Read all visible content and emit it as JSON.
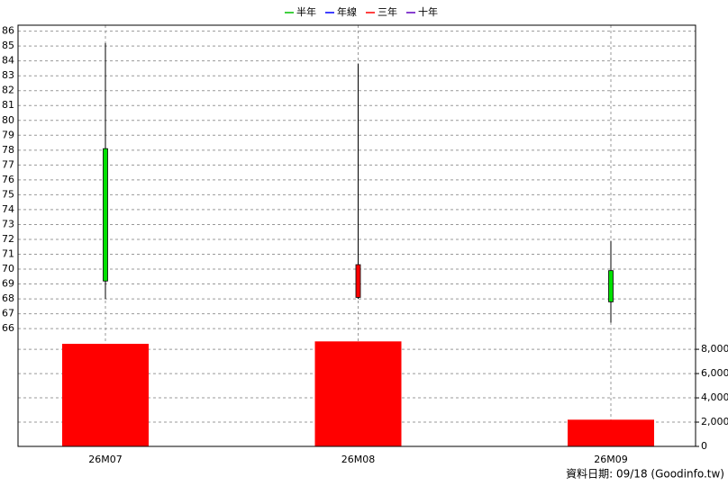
{
  "chart_data": {
    "type": "candlestick",
    "legend": [
      {
        "name": "半年",
        "color": "#00c000"
      },
      {
        "name": "年線",
        "color": "#0000ff"
      },
      {
        "name": "三年",
        "color": "#ff0000"
      },
      {
        "name": "十年",
        "color": "#6000c0"
      }
    ],
    "categories": [
      "26M07",
      "26M08",
      "26M09"
    ],
    "open": [
      78.1,
      68.1,
      69.9
    ],
    "high": [
      85.2,
      83.8,
      71.9
    ],
    "low": [
      68.0,
      68.0,
      66.4
    ],
    "close": [
      69.2,
      70.3,
      67.8
    ],
    "up_color": "#ff0000",
    "down_color": "#00e000",
    "ylim": [
      65.1,
      86.4
    ],
    "yticks": [
      66,
      67,
      68,
      69,
      70,
      71,
      72,
      73,
      74,
      75,
      76,
      77,
      78,
      79,
      80,
      81,
      82,
      83,
      84,
      85,
      86
    ],
    "grid": true,
    "volume": {
      "values": [
        8450,
        8650,
        2200
      ],
      "color": "#ff0000",
      "ylim": [
        0,
        8600
      ],
      "yticks": [
        0,
        {
          "value": 2000,
          "label": "2,000"
        },
        {
          "value": 4000,
          "label": "4,000"
        },
        {
          "value": 6000,
          "label": "6,000"
        },
        {
          "value": 8000,
          "label": "8,000"
        }
      ]
    },
    "footer": "資料日期: 09/18  (Goodinfo.tw)"
  }
}
